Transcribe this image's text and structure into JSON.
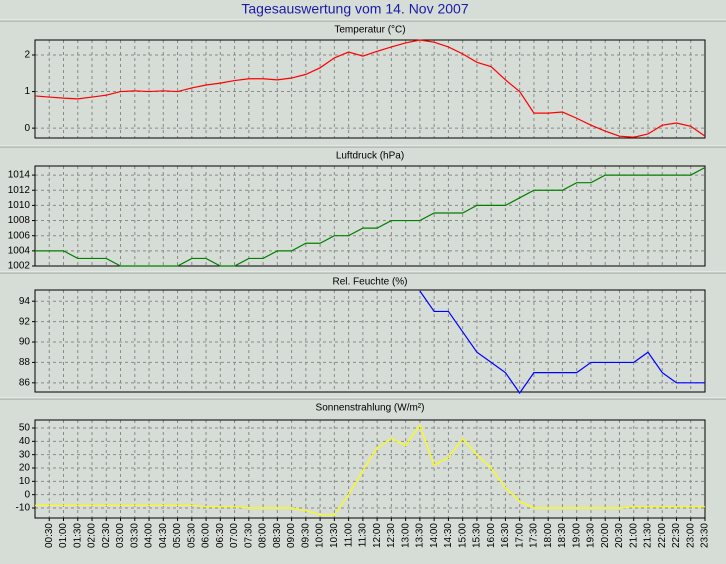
{
  "title": "Tagesauswertung vom 14. Nov 2007",
  "categories": [
    null,
    "00:30",
    "01:00",
    "01:30",
    "02:00",
    "02:30",
    "03:00",
    "03:30",
    "04:00",
    "04:30",
    "05:00",
    "05:30",
    "06:00",
    "06:30",
    "07:00",
    "07:30",
    "08:00",
    "08:30",
    "09:00",
    "09:30",
    "10:00",
    "10:30",
    "11:00",
    "11:30",
    "12:00",
    "12:30",
    "13:00",
    "13:30",
    "14:00",
    "14:30",
    "15:00",
    "15:30",
    "16:00",
    "16:30",
    "17:00",
    "17:30",
    "18:00",
    "18:30",
    "19:00",
    "19:30",
    "20:00",
    "20:30",
    "21:00",
    "21:30",
    "22:00",
    "22:30",
    "23:00",
    "23:30"
  ],
  "chart_data": [
    {
      "type": "line",
      "title": "Temperatur (°C)",
      "color": "#ff0000",
      "ylim": [
        -0.27,
        2.41
      ],
      "yticks": [
        0,
        1,
        2
      ],
      "grid": true,
      "values": [
        0.88,
        0.85,
        0.82,
        0.8,
        0.85,
        0.9,
        1.0,
        1.02,
        1.0,
        1.02,
        1.0,
        1.1,
        1.18,
        1.23,
        1.3,
        1.35,
        1.35,
        1.32,
        1.37,
        1.47,
        1.65,
        1.92,
        2.08,
        1.97,
        2.1,
        2.22,
        2.33,
        2.41,
        2.35,
        2.22,
        2.03,
        1.8,
        1.68,
        1.32,
        1.0,
        0.41,
        0.41,
        0.44,
        0.27,
        0.08,
        -0.08,
        -0.22,
        -0.25,
        -0.16,
        0.08,
        0.14,
        0.05,
        -0.22
      ]
    },
    {
      "type": "line",
      "title": "Luftdruck (hPa)",
      "color": "#008000",
      "ylim": [
        1002,
        1015.2
      ],
      "yticks": [
        1002,
        1004,
        1006,
        1008,
        1010,
        1012,
        1014
      ],
      "grid": true,
      "values": [
        1004,
        1004,
        1004,
        1003,
        1003,
        1003,
        1002,
        1002,
        1002,
        1002,
        1002,
        1003,
        1003,
        1002,
        1002,
        1003,
        1003,
        1004,
        1004,
        1005,
        1005,
        1006,
        1006,
        1007,
        1007,
        1008,
        1008,
        1008,
        1009,
        1009,
        1009,
        1010,
        1010,
        1010,
        1011,
        1012,
        1012,
        1012,
        1013,
        1013,
        1014,
        1014,
        1014,
        1014,
        1014,
        1014,
        1014,
        1015
      ]
    },
    {
      "type": "line",
      "title": "Rel. Feuchte (%)",
      "color": "#0000ff",
      "ylim": [
        85.1,
        95.1
      ],
      "yticks": [
        86,
        88,
        90,
        92,
        94
      ],
      "grid": true,
      "values": [
        null,
        null,
        null,
        null,
        null,
        null,
        null,
        null,
        null,
        null,
        null,
        null,
        null,
        null,
        null,
        null,
        null,
        null,
        null,
        null,
        null,
        null,
        null,
        null,
        null,
        null,
        null,
        95,
        93,
        93,
        91,
        89,
        88,
        87,
        85,
        87,
        87,
        87,
        87,
        88,
        88,
        88,
        88,
        89,
        87,
        86,
        86,
        86
      ]
    },
    {
      "type": "line",
      "title": "Sonnenstrahlung (W/m²)",
      "color": "#ffff00",
      "ylim": [
        -17.5,
        56
      ],
      "yticks": [
        -10,
        0,
        10,
        20,
        30,
        40,
        50
      ],
      "grid": true,
      "values": [
        -8,
        -8,
        -8,
        -8,
        -8,
        -8,
        -8,
        -8,
        -8,
        -8,
        -8,
        -8,
        -9,
        -9,
        -9,
        -10,
        -10,
        -10,
        -10,
        -12,
        -15,
        -15,
        0,
        18,
        35,
        42,
        37,
        52,
        22,
        28,
        42,
        30,
        20,
        5,
        -5,
        -10,
        -10,
        -10,
        -10,
        -10,
        -10,
        -10,
        -9,
        -9,
        -9,
        -9,
        -9,
        -9
      ]
    }
  ]
}
